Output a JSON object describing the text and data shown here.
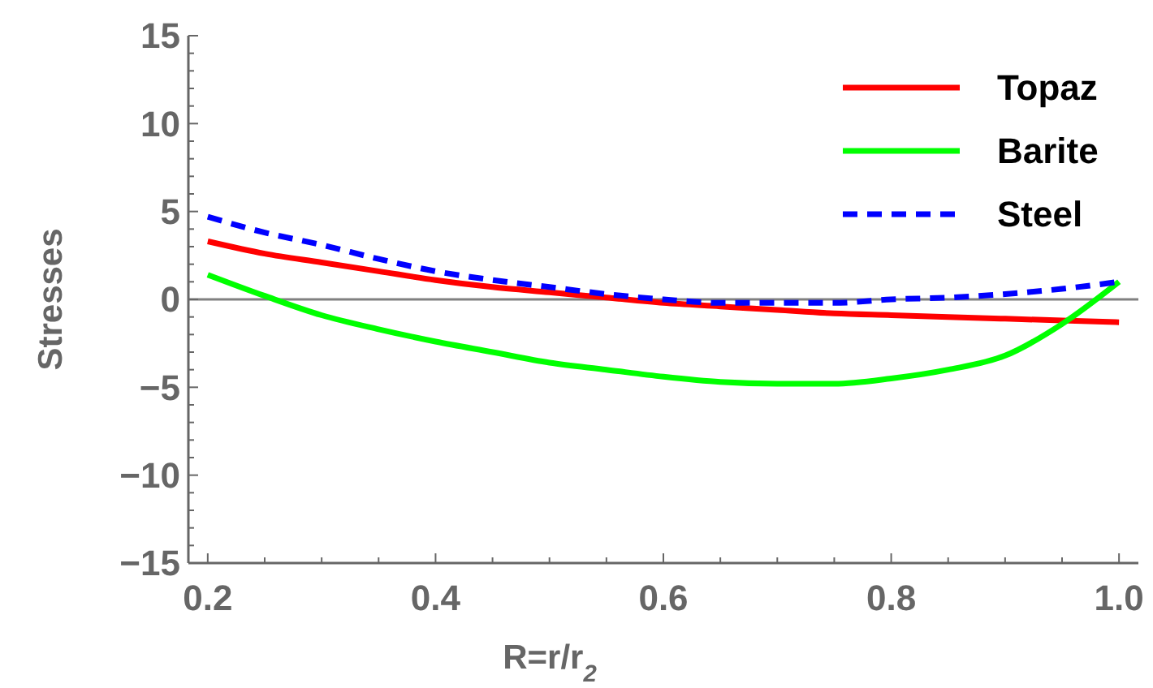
{
  "chart_data": {
    "type": "line",
    "xlabel": "R=r/r$_{2}$",
    "ylabel": "Stresses",
    "xlim": [
      0.183,
      1.017
    ],
    "ylim": [
      -15,
      15
    ],
    "xticks": [
      0.2,
      {
        "value": 0.25,
        "label": null
      },
      {
        "value": 0.3,
        "label": null
      },
      {
        "value": 0.35,
        "label": null
      },
      0.4,
      {
        "value": 0.45,
        "label": null
      },
      {
        "value": 0.5,
        "label": null
      },
      {
        "value": 0.55,
        "label": null
      },
      0.6,
      {
        "value": 0.65,
        "label": null
      },
      {
        "value": 0.7,
        "label": null
      },
      {
        "value": 0.75,
        "label": null
      },
      0.8,
      {
        "value": 0.85,
        "label": null
      },
      {
        "value": 0.9,
        "label": null
      },
      {
        "value": 0.95,
        "label": null
      },
      {
        "value": 1.0,
        "label": "1.0"
      }
    ],
    "yticks": [
      {
        "value": -15,
        "label": "−15"
      },
      {
        "value": -14,
        "label": null
      },
      {
        "value": -13,
        "label": null
      },
      {
        "value": -12,
        "label": null
      },
      {
        "value": -11,
        "label": null
      },
      {
        "value": -10,
        "label": "−10"
      },
      {
        "value": -9,
        "label": null
      },
      {
        "value": -8,
        "label": null
      },
      {
        "value": -7,
        "label": null
      },
      {
        "value": -6,
        "label": null
      },
      {
        "value": -5,
        "label": "−5"
      },
      {
        "value": -4,
        "label": null
      },
      {
        "value": -3,
        "label": null
      },
      {
        "value": -2,
        "label": null
      },
      {
        "value": -1,
        "label": null
      },
      0,
      {
        "value": 1,
        "label": null
      },
      {
        "value": 2,
        "label": null
      },
      {
        "value": 3,
        "label": null
      },
      {
        "value": 4,
        "label": null
      },
      5,
      {
        "value": 6,
        "label": null
      },
      {
        "value": 7,
        "label": null
      },
      {
        "value": 8,
        "label": null
      },
      {
        "value": 9,
        "label": null
      },
      10,
      {
        "value": 11,
        "label": null
      },
      {
        "value": 12,
        "label": null
      },
      {
        "value": 13,
        "label": null
      },
      {
        "value": 14,
        "label": null
      },
      15
    ],
    "x": [
      0.2,
      0.25,
      0.3,
      0.35,
      0.4,
      0.45,
      0.5,
      0.55,
      0.6,
      0.65,
      0.7,
      0.75,
      0.8,
      0.85,
      0.9,
      0.95,
      1.0
    ],
    "ref_lines": [
      {
        "axis": "y",
        "value": 0,
        "color": "#808080"
      }
    ],
    "legend": "top right",
    "grid": false,
    "series": [
      {
        "name": "Topaz",
        "color": "#ff0000",
        "line_style": "solid",
        "values": [
          3.3,
          2.6,
          2.1,
          1.6,
          1.1,
          0.7,
          0.4,
          0.1,
          -0.2,
          -0.4,
          -0.6,
          -0.8,
          -0.9,
          -1.0,
          -1.1,
          -1.2,
          -1.3
        ]
      },
      {
        "name": "Barite",
        "color": "#00ff00",
        "line_style": "solid",
        "values": [
          1.4,
          0.2,
          -0.9,
          -1.7,
          -2.4,
          -3.0,
          -3.6,
          -4.0,
          -4.4,
          -4.7,
          -4.8,
          -4.8,
          -4.5,
          -4.0,
          -3.2,
          -1.4,
          1.0
        ]
      },
      {
        "name": "Steel",
        "color": "#0000ff",
        "line_style": "dashed",
        "values": [
          4.7,
          3.8,
          3.1,
          2.3,
          1.6,
          1.1,
          0.7,
          0.3,
          0.0,
          -0.2,
          -0.2,
          -0.2,
          0.0,
          0.1,
          0.3,
          0.6,
          1.0
        ]
      }
    ]
  }
}
